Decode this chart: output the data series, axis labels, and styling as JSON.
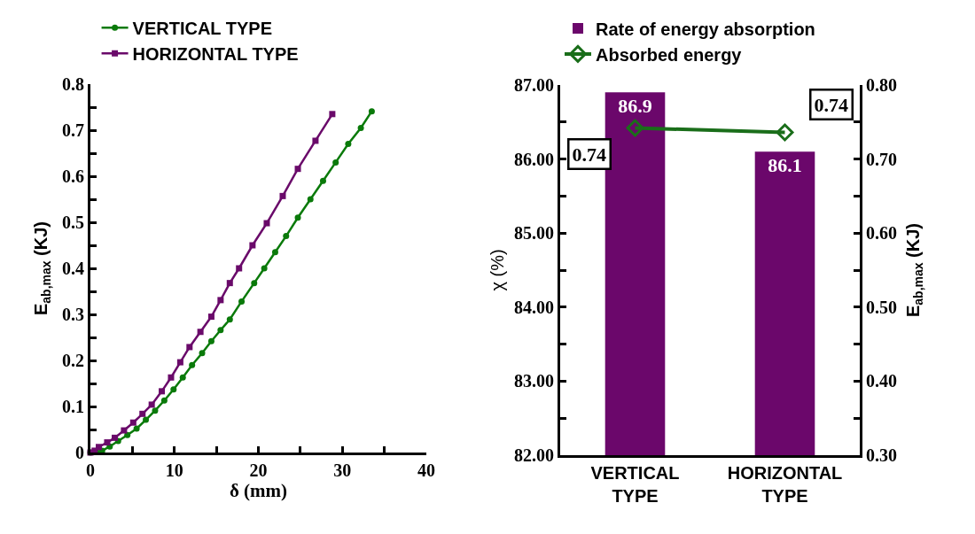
{
  "chart_data": [
    {
      "type": "line",
      "xlabel": "δ (mm)",
      "ylabel": "E$_{ab,max}$ (KJ)",
      "xlim": [
        0,
        40
      ],
      "xticks": [
        0,
        {
          "value": 5,
          "label": null
        },
        10,
        {
          "value": 15,
          "label": null
        },
        20,
        {
          "value": 25,
          "label": null
        },
        30,
        {
          "value": 35,
          "label": null
        },
        40
      ],
      "ylim": [
        0,
        0.8
      ],
      "yticks": [
        0,
        {
          "value": 0.05,
          "label": null
        },
        0.1,
        {
          "value": 0.15,
          "label": null
        },
        0.2,
        {
          "value": 0.25,
          "label": null
        },
        0.3,
        {
          "value": 0.35,
          "label": null
        },
        0.4,
        {
          "value": 0.45,
          "label": null
        },
        0.5,
        {
          "value": 0.55,
          "label": null
        },
        0.6,
        {
          "value": 0.65,
          "label": null
        },
        0.7,
        {
          "value": 0.75,
          "label": null
        },
        0.8
      ],
      "grid": false,
      "legend": "top",
      "series": [
        {
          "name": "VERTICAL TYPE",
          "color": "#0a7a0a",
          "marker": "circle",
          "x": [
            0,
            0.7,
            1.4,
            2.3,
            3.3,
            4.4,
            5.5,
            6.6,
            7.7,
            8.8,
            9.9,
            11,
            12.1,
            13.3,
            14.4,
            15.5,
            16.6,
            18,
            19.5,
            20.7,
            22,
            23.3,
            24.7,
            26.2,
            27.7,
            29.2,
            30.7,
            32.2,
            33.5
          ],
          "values": [
            0,
            0.001,
            0.004,
            0.013,
            0.025,
            0.038,
            0.052,
            0.071,
            0.091,
            0.113,
            0.137,
            0.163,
            0.19,
            0.216,
            0.242,
            0.266,
            0.289,
            0.328,
            0.368,
            0.4,
            0.435,
            0.47,
            0.51,
            0.55,
            0.59,
            0.63,
            0.67,
            0.705,
            0.741
          ]
        },
        {
          "name": "HORIZONTAL TYPE",
          "color": "#6a0a6a",
          "marker": "square",
          "x": [
            0,
            0.5,
            1,
            2,
            2.9,
            4,
            5.1,
            6.2,
            7.3,
            8.5,
            9.6,
            10.7,
            11.8,
            13.1,
            14.4,
            15.5,
            16.6,
            17.7,
            19.3,
            21,
            22.9,
            24.7,
            26.8,
            28.8
          ],
          "values": [
            0,
            0.004,
            0.012,
            0.022,
            0.032,
            0.048,
            0.065,
            0.084,
            0.104,
            0.133,
            0.163,
            0.196,
            0.229,
            0.262,
            0.295,
            0.331,
            0.368,
            0.4,
            0.45,
            0.498,
            0.557,
            0.616,
            0.677,
            0.735
          ]
        }
      ]
    },
    {
      "type": "bar",
      "ylabel": "χ (%)",
      "y2label": "E$_{ab,max}$ (KJ)",
      "categories": [
        "VERTICAL TYPE",
        "HORIZONTAL TYPE"
      ],
      "ylim": [
        82,
        87
      ],
      "yticks": [
        {
          "value": 82,
          "label": "82.00"
        },
        {
          "value": 82.5,
          "label": null
        },
        {
          "value": 83,
          "label": "83.00"
        },
        {
          "value": 83.5,
          "label": null
        },
        {
          "value": 84,
          "label": "84.00"
        },
        {
          "value": 84.5,
          "label": null
        },
        {
          "value": 85,
          "label": "85.00"
        },
        {
          "value": 85.5,
          "label": null
        },
        {
          "value": 86,
          "label": "86.00"
        },
        {
          "value": 86.5,
          "label": null
        },
        {
          "value": 87,
          "label": "87.00"
        }
      ],
      "y2lim": [
        0.3,
        0.8
      ],
      "y2ticks": [
        {
          "value": 0.3,
          "label": "0.30"
        },
        {
          "value": 0.35,
          "label": null
        },
        {
          "value": 0.4,
          "label": "0.40"
        },
        {
          "value": 0.45,
          "label": null
        },
        {
          "value": 0.5,
          "label": "0.50"
        },
        {
          "value": 0.55,
          "label": null
        },
        {
          "value": 0.6,
          "label": "0.60"
        },
        {
          "value": 0.65,
          "label": null
        },
        {
          "value": 0.7,
          "label": "0.70"
        },
        {
          "value": 0.75,
          "label": null
        },
        {
          "value": 0.8,
          "label": "0.80"
        }
      ],
      "grid": false,
      "legend": "top",
      "series": [
        {
          "name": "Rate of energy absorption",
          "type": "bar",
          "color": "#6b076b",
          "values": [
            86.9,
            86.1
          ],
          "value_labels": [
            "86.9",
            "86.1"
          ]
        },
        {
          "name": "Absorbed energy",
          "type": "line",
          "axis": "y2",
          "color": "#1a6e1a",
          "marker": "diamond",
          "values": [
            0.742,
            0.736
          ],
          "value_labels": [
            "0.74",
            "0.74"
          ]
        }
      ]
    }
  ]
}
